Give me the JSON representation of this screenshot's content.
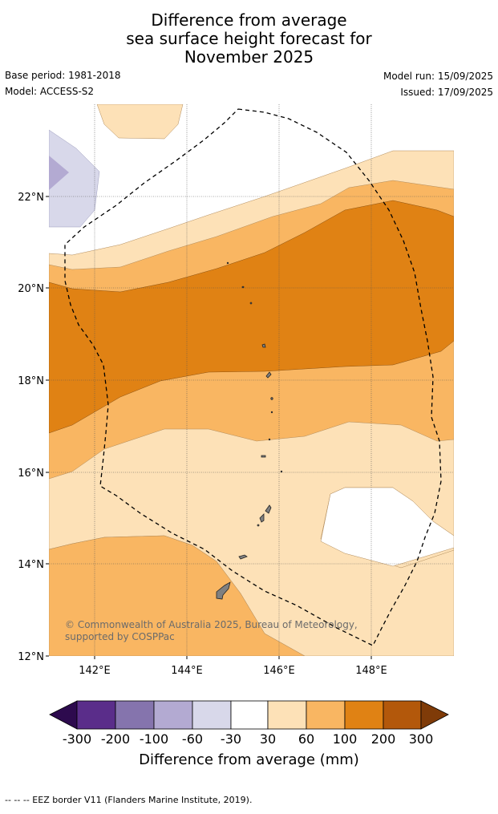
{
  "title": {
    "line1": "Difference from average",
    "line2": "sea surface height forecast for",
    "line3": "November 2025"
  },
  "meta": {
    "base_period": "Base period: 1981-2018",
    "model": "Model: ACCESS-S2",
    "model_run": "Model run: 15/09/2025",
    "issued": "Issued: 17/09/2025"
  },
  "map": {
    "lat_labels": [
      "22°N",
      "20°N",
      "18°N",
      "16°N",
      "14°N",
      "12°N"
    ],
    "lon_labels": [
      "142°E",
      "144°E",
      "146°E",
      "148°E"
    ],
    "copyright": "© Commonwealth of Australia 2025, Bureau of Meteorology, supported by COSPPac",
    "colors": {
      "neg_300": "#2d0a4e",
      "neg_200": "#5a2d8a",
      "neg_100": "#8574ad",
      "neg_60": "#b3aad2",
      "neg_30": "#d8d8ea",
      "zero": "#ffffff",
      "pos_30": "#fde1b7",
      "pos_60": "#f9b662",
      "pos_100": "#e08214",
      "pos_200": "#b3580b",
      "pos_300": "#7f3b08",
      "land": "#808080"
    }
  },
  "colorbar": {
    "ticks": [
      "-300",
      "-200",
      "-100",
      "-60",
      "-30",
      "30",
      "60",
      "100",
      "200",
      "300"
    ],
    "title": "Difference from average (mm)"
  },
  "footer": {
    "legend_text": "-- -- -- EEZ border V11 (Flanders Marine Institute, 2019)."
  }
}
